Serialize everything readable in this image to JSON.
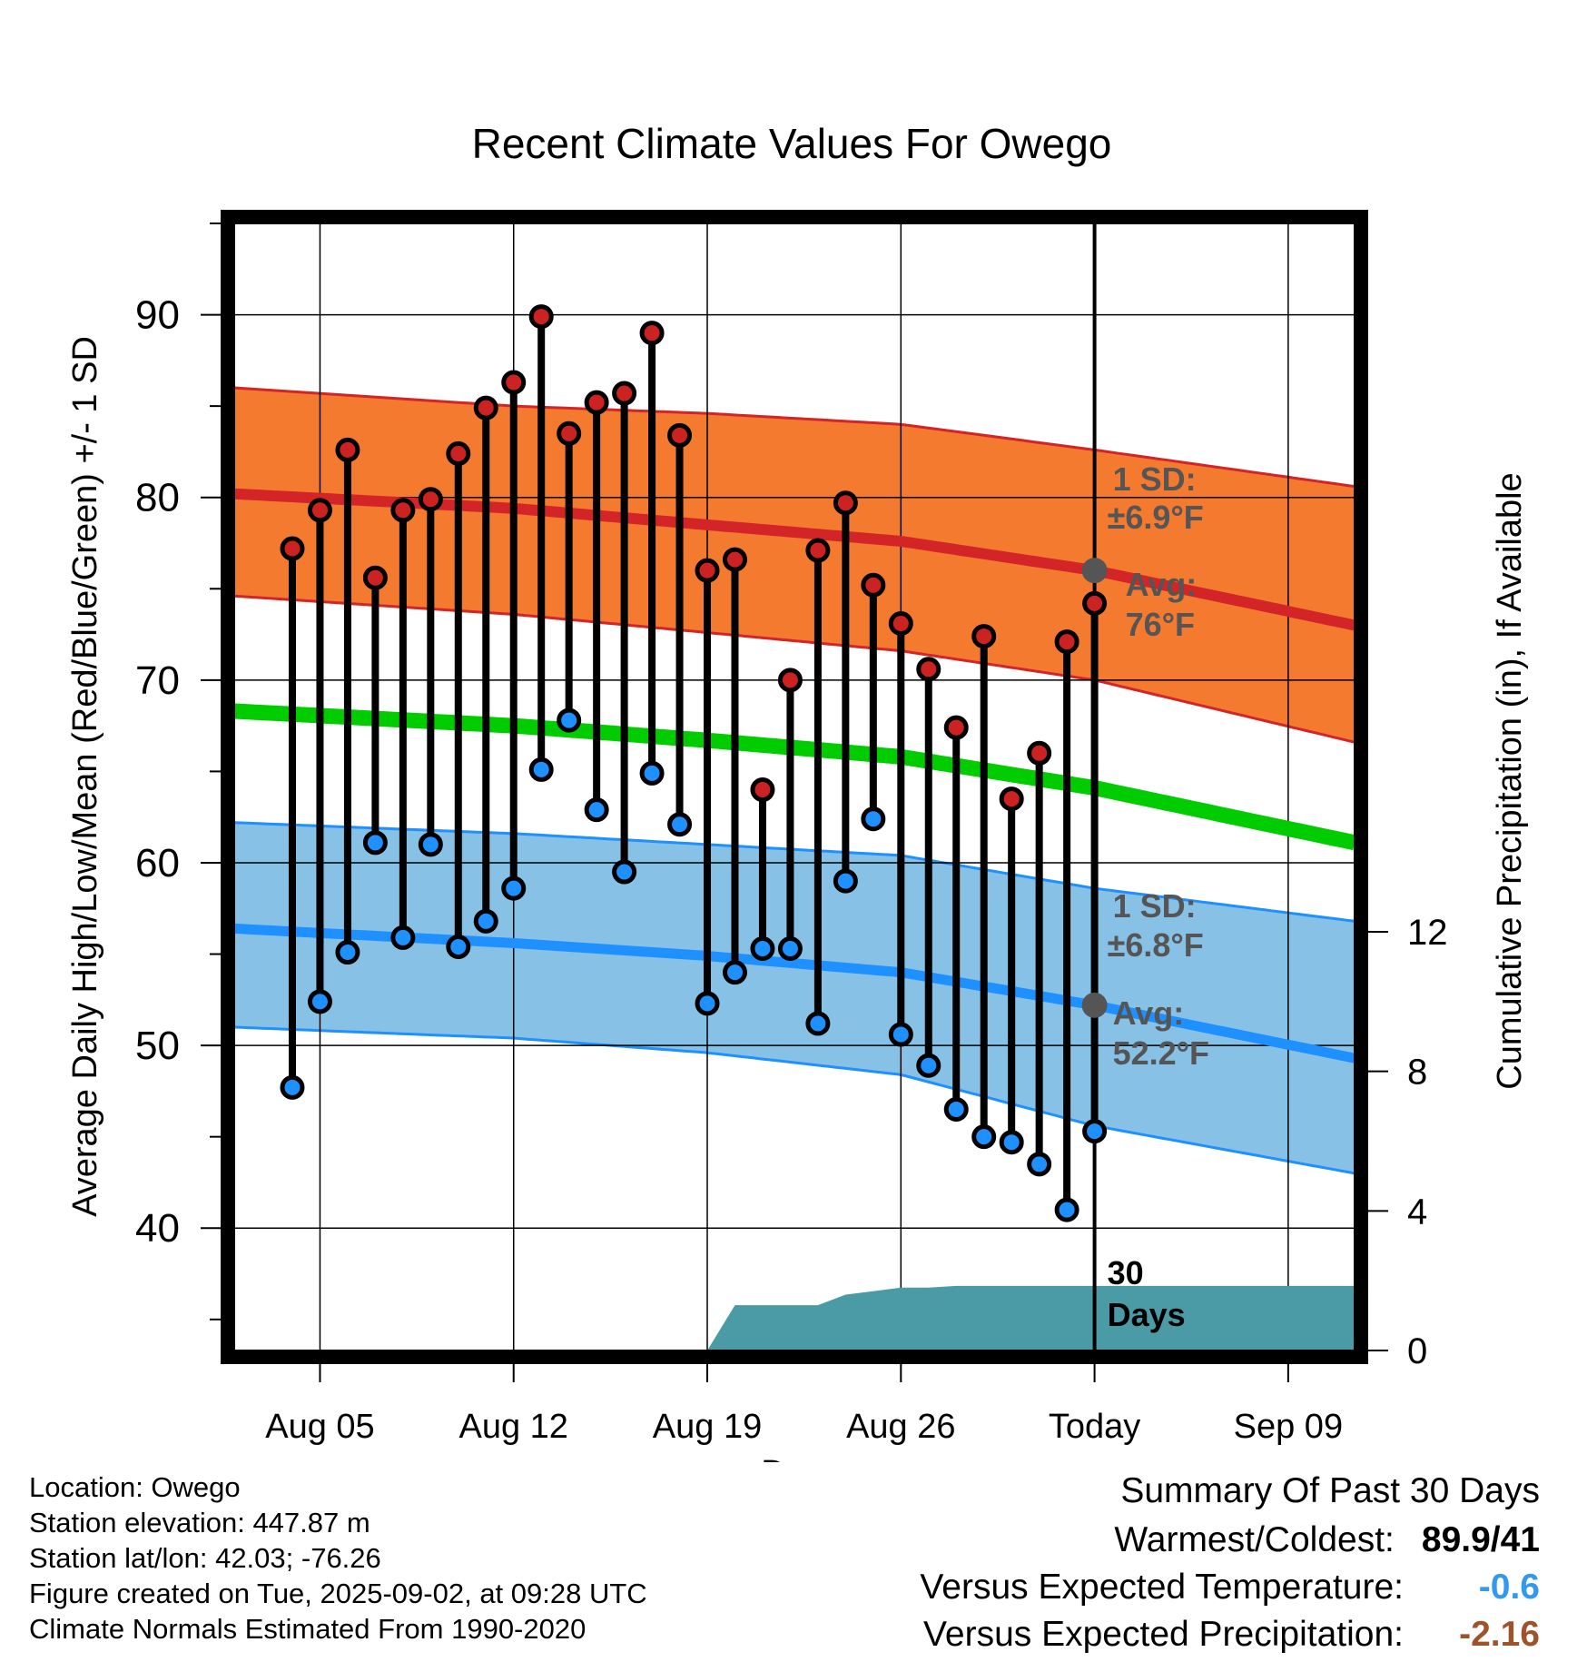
{
  "chart_data": {
    "type": "line",
    "title": "Recent Climate Values For Owego",
    "xlabel": "Day",
    "ylabel": "Average Daily High/Low/Mean (Red/Blue/Green) +/- 1 SD",
    "y2label": "Cumulative Precipitation (in), If Available",
    "x_tick_labels": [
      "Aug 05",
      "Aug 12",
      "Aug 19",
      "Aug 26",
      "Today",
      "Sep 09"
    ],
    "x_tick_days": [
      5,
      12,
      19,
      26,
      33,
      40
    ],
    "xlim": [
      1.9,
      42.4
    ],
    "ylim": [
      33.3,
      95
    ],
    "y_ticks": [
      40,
      50,
      60,
      70,
      80,
      90
    ],
    "y2lim": [
      0,
      32.3
    ],
    "y2_ticks": [
      0,
      4,
      8,
      12
    ],
    "today_day": 33,
    "grid": true,
    "daily": {
      "days": [
        4,
        5,
        6,
        7,
        8,
        9,
        10,
        11,
        12,
        13,
        14,
        15,
        16,
        17,
        18,
        19,
        20,
        21,
        22,
        23,
        24,
        25,
        26,
        27,
        28,
        29,
        30,
        31,
        32,
        33
      ],
      "highs": [
        77.2,
        79.3,
        82.6,
        75.6,
        79.3,
        79.9,
        82.4,
        84.9,
        86.3,
        89.9,
        83.5,
        85.2,
        85.7,
        89.0,
        83.4,
        76.0,
        76.6,
        64.0,
        70.0,
        77.1,
        79.7,
        75.2,
        73.1,
        70.6,
        67.4,
        72.4,
        63.5,
        66.0,
        72.1,
        74.2
      ],
      "lows": [
        47.7,
        52.4,
        55.1,
        61.1,
        55.9,
        61.0,
        55.4,
        56.8,
        58.6,
        65.1,
        67.8,
        62.9,
        59.5,
        64.9,
        62.1,
        52.3,
        54.0,
        55.3,
        55.3,
        51.2,
        59.0,
        62.4,
        50.6,
        48.9,
        46.5,
        45.0,
        44.7,
        43.5,
        41.0,
        45.3
      ]
    },
    "normal_high": {
      "days": [
        1.9,
        12,
        19,
        26,
        33,
        42.4
      ],
      "avg": [
        80.2,
        79.4,
        78.5,
        77.6,
        76.0,
        73.0
      ],
      "upper": [
        86.0,
        85.0,
        84.6,
        84.0,
        82.6,
        80.6
      ],
      "lower": [
        74.6,
        73.6,
        72.6,
        71.6,
        70.0,
        66.6
      ]
    },
    "normal_mean": {
      "days": [
        1.9,
        12,
        19,
        26,
        33,
        42.4
      ],
      "values": [
        68.3,
        67.5,
        66.7,
        65.8,
        64.1,
        61.1
      ]
    },
    "normal_low": {
      "days": [
        1.9,
        12,
        19,
        26,
        33,
        42.4
      ],
      "avg": [
        56.4,
        55.6,
        54.9,
        54.0,
        52.2,
        49.3
      ],
      "upper": [
        62.2,
        61.6,
        61.0,
        60.4,
        58.6,
        56.8
      ],
      "lower": [
        51.0,
        50.4,
        49.6,
        48.4,
        45.6,
        43.0
      ]
    },
    "precipitation": {
      "days": [
        19,
        20,
        21,
        23,
        24,
        25,
        26,
        27,
        28,
        33,
        42.4
      ],
      "cumulative": [
        0,
        1.3,
        1.3,
        1.3,
        1.6,
        1.7,
        1.8,
        1.8,
        1.85,
        1.85,
        1.85
      ]
    },
    "annotations": {
      "high_sd_label": "1 SD:",
      "high_sd_value": "±6.9°F",
      "high_avg_label": "Avg:",
      "high_avg_value": "76°F",
      "low_sd_label": "1 SD:",
      "low_sd_value": "±6.8°F",
      "low_avg_label": "Avg:",
      "low_avg_value": "52.2°F",
      "precip_label_1": "30",
      "precip_label_2": "Days"
    },
    "colors": {
      "high_band": "#f47a2f",
      "high_line": "#d32428",
      "high_marker": "#cc2222",
      "mean_line": "#00cc00",
      "low_band": "#87c1e6",
      "low_line": "#1e90ff",
      "low_marker": "#1e90ff",
      "precip": "#4a9ba6",
      "annotation_text": "#555555",
      "today_marker": "#555555"
    }
  },
  "footer": {
    "location": "Location: Owego",
    "elevation": "Station elevation: 447.87 m",
    "latlon": "Station lat/lon: 42.03; -76.26",
    "created": "Figure created on Tue, 2025-09-02, at 09:28 UTC",
    "normals": "Climate Normals Estimated From 1990-2020"
  },
  "summary": {
    "title": "Summary Of Past 30 Days",
    "warmest_label": "Warmest/Coldest:",
    "warmest_value": "89.9/41",
    "temp_label": "Versus Expected Temperature:",
    "temp_value": "-0.6",
    "temp_color": "#3399ee",
    "precip_label": "Versus Expected Precipitation:",
    "precip_value": "-2.16",
    "precip_color": "#a0522d"
  }
}
